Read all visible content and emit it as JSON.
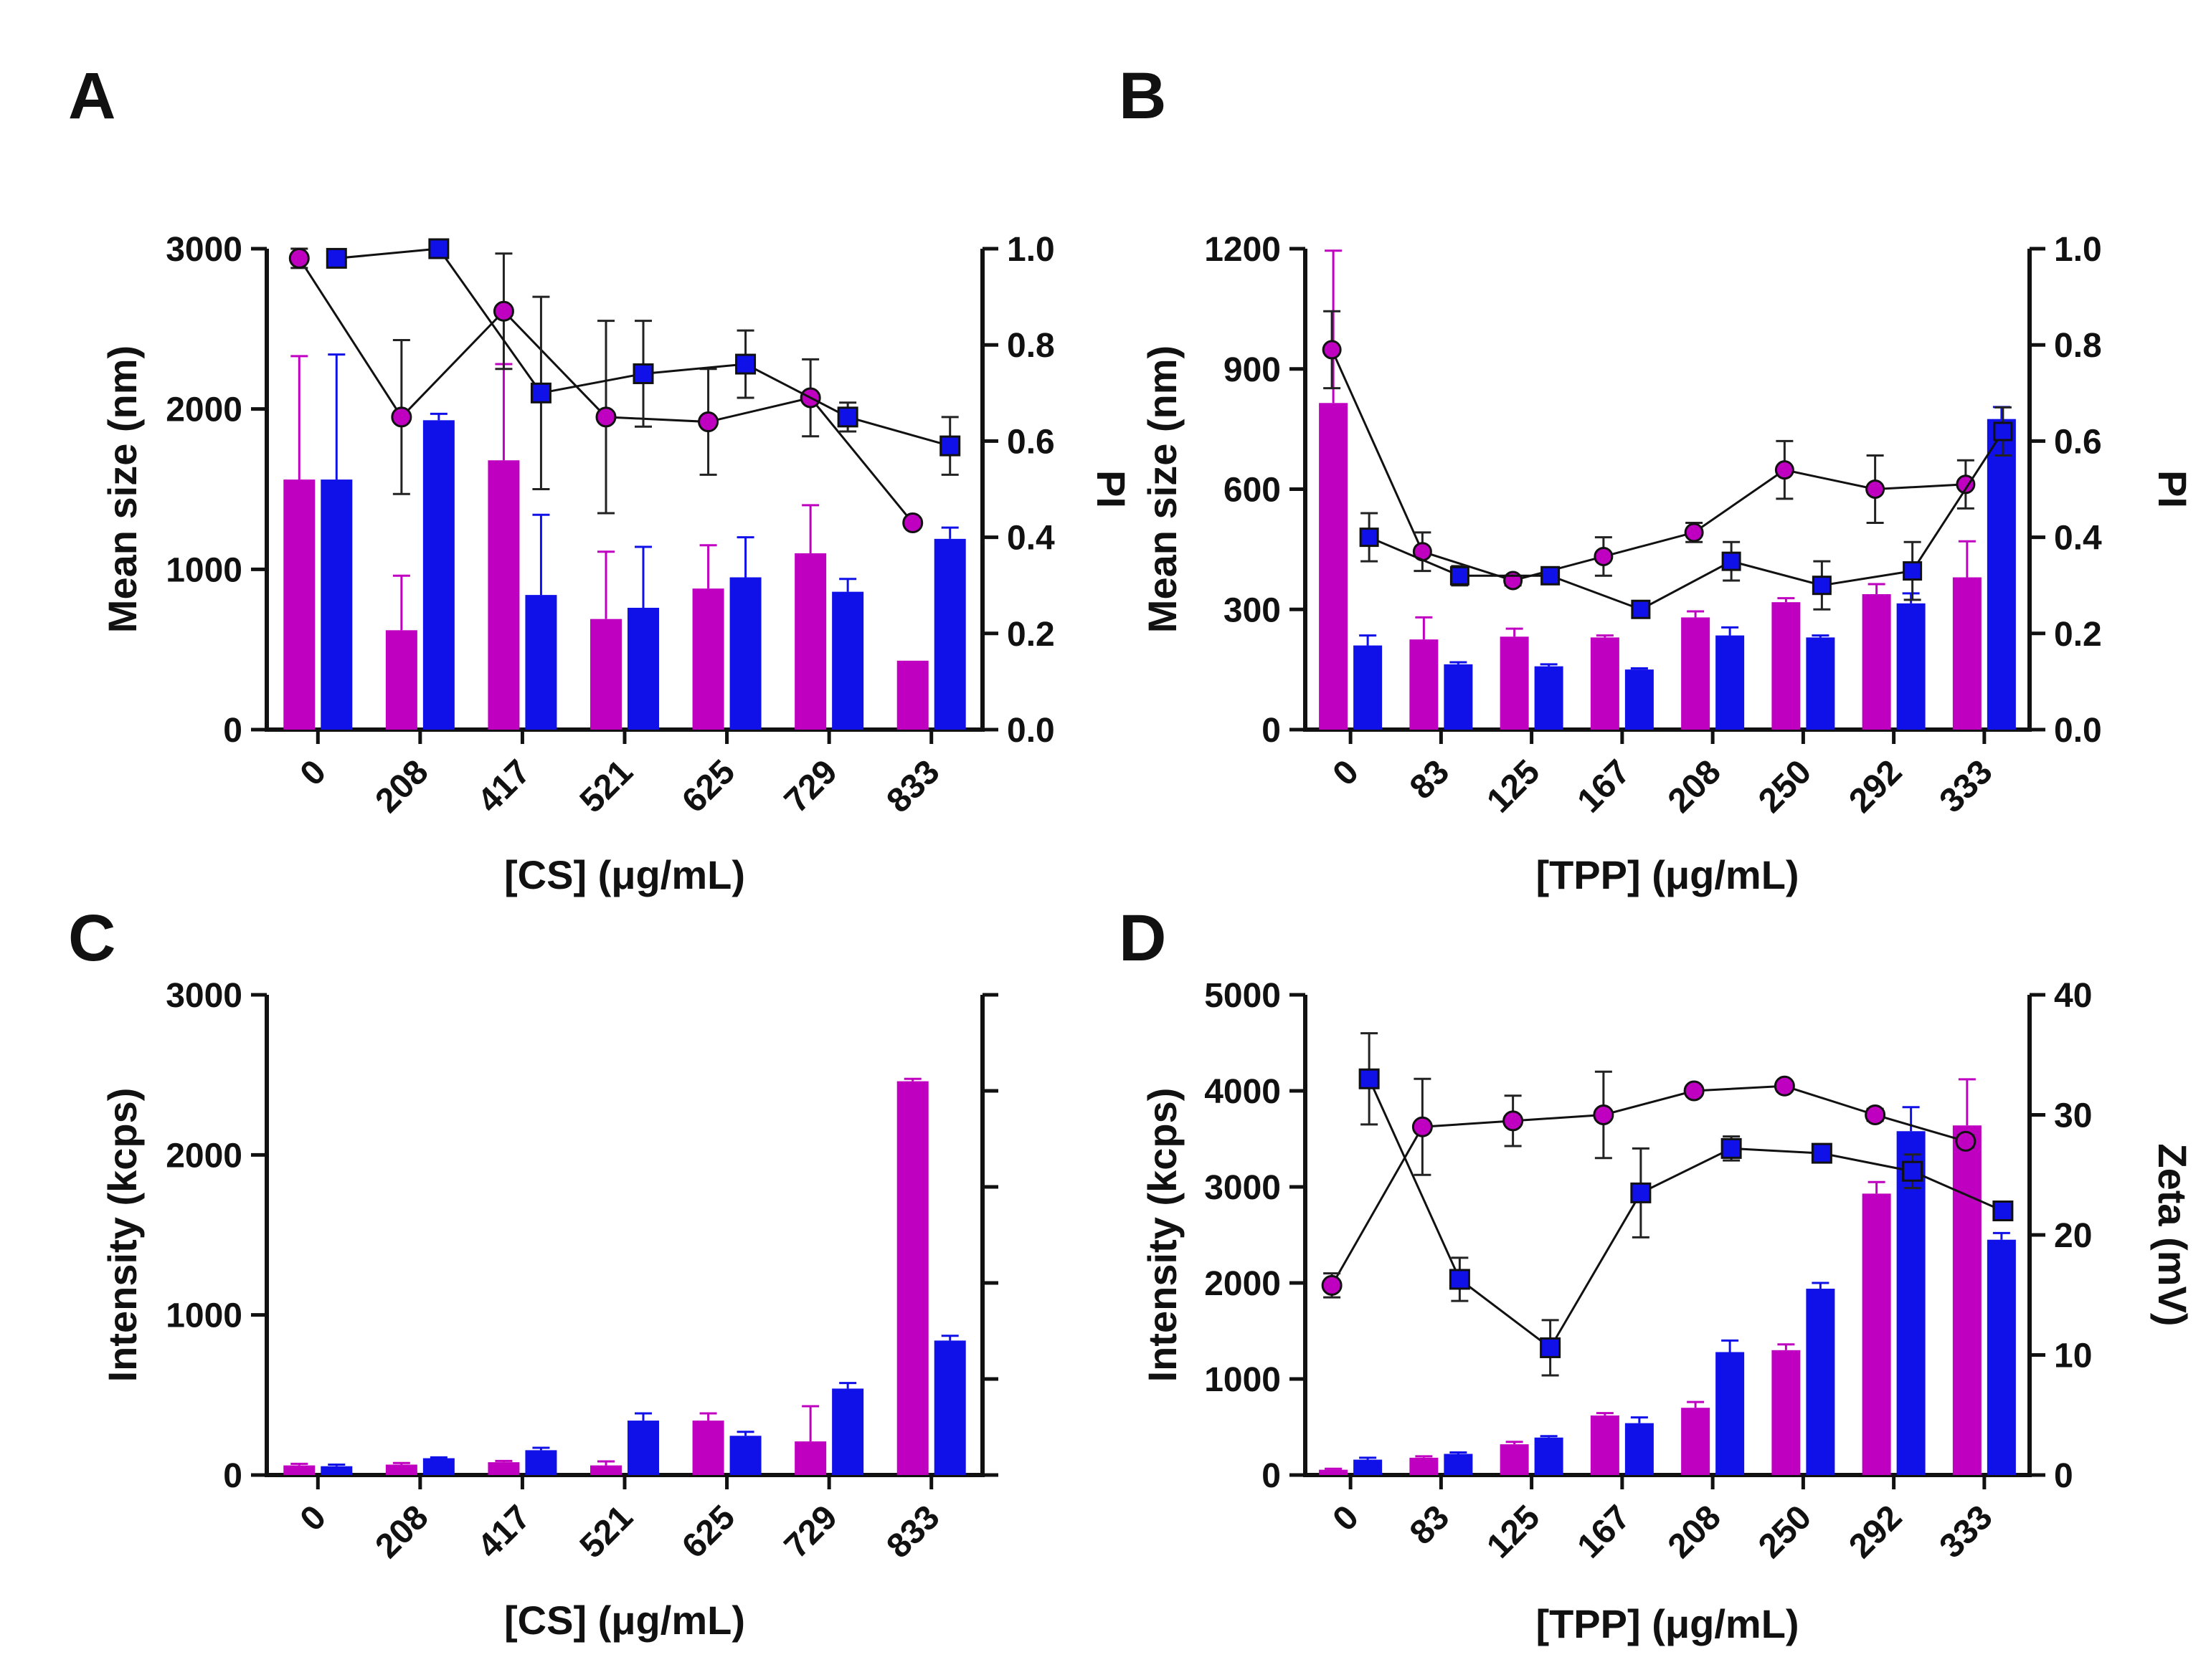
{
  "chart_data": [
    {
      "panel": "A",
      "type": "bar",
      "categories": [
        "0",
        "208",
        "417",
        "521",
        "625",
        "729",
        "833"
      ],
      "xlabel": "[CS] (μg/mL)",
      "ylabel": "Mean size (nm)",
      "ylabel_right": "PI",
      "ylim": [
        0,
        3000
      ],
      "y_ticks": [
        "0",
        "1000",
        "2000",
        "3000"
      ],
      "ylim_right": [
        0,
        1.0
      ],
      "y_ticks_right": [
        "0.0",
        "0.2",
        "0.4",
        "0.6",
        "0.8",
        "1.0"
      ],
      "series": [
        {
          "name": "magenta bars",
          "color": "#c000c0",
          "values": [
            1560,
            620,
            1680,
            690,
            880,
            1100,
            430
          ],
          "errors": [
            770,
            340,
            600,
            420,
            270,
            300,
            0
          ]
        },
        {
          "name": "blue bars",
          "color": "#1010e8",
          "values": [
            1560,
            1930,
            840,
            760,
            950,
            860,
            1190
          ],
          "errors": [
            780,
            40,
            500,
            380,
            250,
            80,
            70
          ]
        }
      ],
      "line_series": [
        {
          "name": "magenta circles",
          "marker": "circle",
          "color": "#c000c0",
          "values": [
            0.98,
            0.65,
            0.87,
            0.65,
            0.64,
            0.69,
            0.43
          ],
          "errors": [
            0.02,
            0.16,
            0.12,
            0.2,
            0.11,
            0.08,
            0.01
          ]
        },
        {
          "name": "blue squares",
          "marker": "square",
          "color": "#1010e8",
          "values": [
            0.98,
            1.0,
            0.7,
            0.74,
            0.76,
            0.65,
            0.59
          ],
          "errors": [
            0,
            0,
            0.2,
            0.11,
            0.07,
            0.03,
            0.06
          ]
        }
      ]
    },
    {
      "panel": "B",
      "type": "bar",
      "categories": [
        "0",
        "83",
        "125",
        "167",
        "208",
        "250",
        "292",
        "333"
      ],
      "xlabel": "[TPP] (μg/mL)",
      "ylabel": "Mean size (nm)",
      "ylabel_right": "PI",
      "ylim": [
        0,
        1200
      ],
      "y_ticks": [
        "0",
        "300",
        "600",
        "900",
        "1200"
      ],
      "ylim_right": [
        0,
        1.0
      ],
      "y_ticks_right": [
        "0.0",
        "0.2",
        "0.4",
        "0.6",
        "0.8",
        "1.0"
      ],
      "series": [
        {
          "name": "magenta bars",
          "color": "#c000c0",
          "values": [
            815,
            225,
            232,
            230,
            280,
            318,
            338,
            380
          ],
          "errors": [
            380,
            55,
            20,
            5,
            15,
            10,
            25,
            90
          ]
        },
        {
          "name": "blue bars",
          "color": "#1010e8",
          "values": [
            210,
            163,
            158,
            150,
            235,
            230,
            315,
            775
          ],
          "errors": [
            25,
            5,
            5,
            3,
            20,
            5,
            25,
            30
          ]
        }
      ],
      "line_series": [
        {
          "name": "magenta circles",
          "marker": "circle",
          "color": "#c000c0",
          "values": [
            0.79,
            0.37,
            0.31,
            0.36,
            0.41,
            0.54,
            0.5,
            0.51
          ],
          "errors": [
            0.08,
            0.04,
            0.01,
            0.04,
            0.02,
            0.06,
            0.07,
            0.05
          ]
        },
        {
          "name": "blue squares",
          "marker": "square",
          "color": "#1010e8",
          "values": [
            0.4,
            0.32,
            0.32,
            0.25,
            0.35,
            0.3,
            0.33,
            0.62
          ],
          "errors": [
            0.05,
            0.02,
            0.01,
            0.01,
            0.04,
            0.05,
            0.06,
            0.05
          ]
        }
      ]
    },
    {
      "panel": "C",
      "type": "bar",
      "categories": [
        "0",
        "208",
        "417",
        "521",
        "625",
        "729",
        "833"
      ],
      "xlabel": "[CS] (μg/mL)",
      "ylabel": "Intensity (kcps)",
      "ylim": [
        0,
        3000
      ],
      "y_ticks": [
        "0",
        "1000",
        "2000",
        "3000"
      ],
      "right_axis_ticks": 5,
      "series": [
        {
          "name": "magenta bars",
          "color": "#c000c0",
          "values": [
            60,
            65,
            80,
            60,
            340,
            210,
            2460
          ],
          "errors": [
            10,
            10,
            8,
            25,
            45,
            220,
            15
          ]
        },
        {
          "name": "blue bars",
          "color": "#1010e8",
          "values": [
            55,
            105,
            155,
            340,
            245,
            540,
            840
          ],
          "errors": [
            10,
            5,
            15,
            45,
            25,
            35,
            30
          ]
        }
      ]
    },
    {
      "panel": "D",
      "type": "bar",
      "categories": [
        "0",
        "83",
        "125",
        "167",
        "208",
        "250",
        "292",
        "333"
      ],
      "xlabel": "[TPP] (μg/mL)",
      "ylabel": "Intensity (kcps)",
      "ylabel_right": "Zeta (mV)",
      "ylim": [
        0,
        5000
      ],
      "y_ticks": [
        "0",
        "1000",
        "2000",
        "3000",
        "4000",
        "5000"
      ],
      "ylim_right": [
        0,
        40
      ],
      "y_ticks_right": [
        "0",
        "10",
        "20",
        "30",
        "40"
      ],
      "series": [
        {
          "name": "magenta bars",
          "color": "#c000c0",
          "values": [
            55,
            180,
            320,
            620,
            700,
            1300,
            2930,
            3640
          ],
          "errors": [
            10,
            15,
            25,
            25,
            60,
            60,
            120,
            480
          ]
        },
        {
          "name": "blue bars",
          "color": "#1010e8",
          "values": [
            160,
            220,
            390,
            540,
            1280,
            1940,
            3580,
            2450
          ],
          "errors": [
            20,
            15,
            15,
            60,
            120,
            60,
            250,
            70
          ]
        }
      ],
      "line_series": [
        {
          "name": "magenta circles",
          "marker": "circle",
          "color": "#c000c0",
          "values": [
            15.8,
            29,
            29.5,
            30,
            32,
            32.4,
            30,
            27.8
          ],
          "errors": [
            1,
            4,
            2.1,
            3.6,
            0.4,
            0.3,
            0.5,
            0.5
          ]
        },
        {
          "name": "blue squares",
          "marker": "square",
          "color": "#1010e8",
          "values": [
            33,
            16.3,
            10.6,
            23.5,
            27.2,
            26.8,
            25.3,
            22
          ],
          "errors": [
            3.8,
            1.8,
            2.3,
            3.7,
            1,
            0.7,
            1.4,
            0.3
          ]
        }
      ]
    }
  ]
}
